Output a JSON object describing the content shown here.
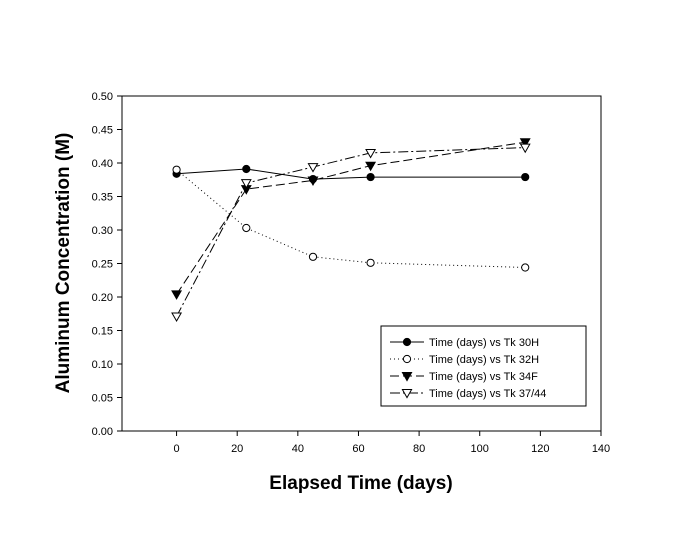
{
  "chart_data": {
    "type": "line",
    "xlabel": "Elapsed Time (days)",
    "ylabel": "Aluminum Concentration (M)",
    "xlim": [
      -18,
      140
    ],
    "ylim": [
      0,
      0.5
    ],
    "xticks": [
      0,
      20,
      40,
      60,
      80,
      100,
      120,
      140
    ],
    "xtick_labels": [
      "0",
      "20",
      "40",
      "60",
      "80",
      "100",
      "120",
      "140"
    ],
    "yticks": [
      0,
      0.05,
      0.1,
      0.15,
      0.2,
      0.25,
      0.3,
      0.35,
      0.4,
      0.45,
      0.5
    ],
    "ytick_labels": [
      "0.00",
      "0.05",
      "0.10",
      "0.15",
      "0.20",
      "0.25",
      "0.30",
      "0.35",
      "0.40",
      "0.45",
      "0.50"
    ],
    "grid": false,
    "legend_position": "bottom-right",
    "series": [
      {
        "name": "Time (days) vs Tk 30H",
        "marker": "filled-circle",
        "line": "solid",
        "points": [
          [
            0,
            0.384
          ],
          [
            23,
            0.391
          ],
          [
            45,
            0.376
          ],
          [
            64,
            0.379
          ],
          [
            115,
            0.379
          ]
        ]
      },
      {
        "name": "Time (days) vs Tk 32H",
        "marker": "open-circle",
        "line": "dotted",
        "points": [
          [
            0,
            0.39
          ],
          [
            23,
            0.303
          ],
          [
            45,
            0.26
          ],
          [
            64,
            0.251
          ],
          [
            115,
            0.244
          ]
        ]
      },
      {
        "name": "Time (days) vs Tk 34F",
        "marker": "filled-triangle-down",
        "line": "dash",
        "points": [
          [
            0,
            0.204
          ],
          [
            23,
            0.361
          ],
          [
            45,
            0.374
          ],
          [
            64,
            0.396
          ],
          [
            115,
            0.431
          ]
        ]
      },
      {
        "name": "Time (days) vs Tk 37/44",
        "marker": "open-triangle-down",
        "line": "dash-dot",
        "points": [
          [
            0,
            0.171
          ],
          [
            23,
            0.37
          ],
          [
            45,
            0.394
          ],
          [
            64,
            0.415
          ],
          [
            115,
            0.423
          ]
        ]
      }
    ]
  }
}
